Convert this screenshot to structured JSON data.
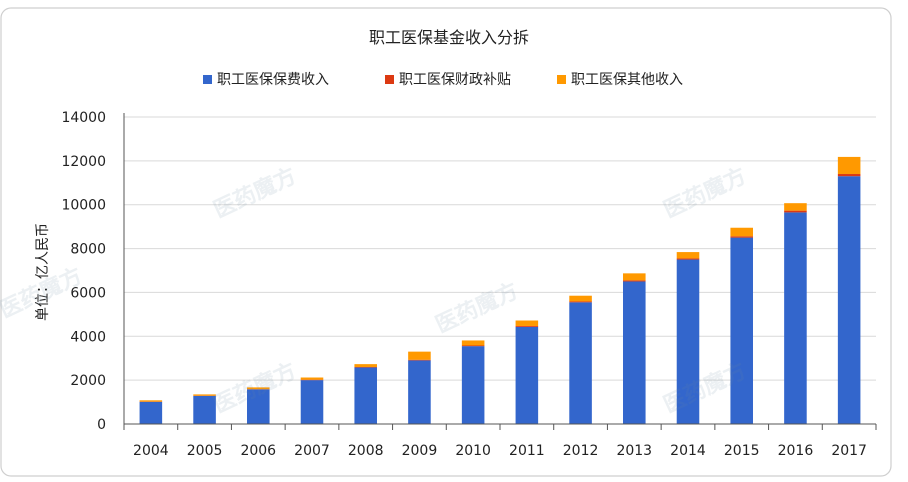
{
  "colors": {
    "series": [
      "#3366cc",
      "#dc3912",
      "#ff9900"
    ],
    "grid": "#d9d9d9",
    "axis": "#555555",
    "text": "#222222",
    "frame": "#cfcfcf"
  },
  "chart_data": {
    "type": "bar",
    "stacked": true,
    "title": "职工医保基金收入分拆",
    "ylabel": "单位：亿人民币",
    "xlabel": "",
    "ylim": [
      0,
      14000
    ],
    "yticks": [
      "0",
      "2000",
      "4000",
      "6000",
      "8000",
      "10000",
      "12000",
      "14000"
    ],
    "grid": true,
    "legend_position": "top",
    "categories": [
      "2004",
      "2005",
      "2006",
      "2007",
      "2008",
      "2009",
      "2010",
      "2011",
      "2012",
      "2013",
      "2014",
      "2015",
      "2016",
      "2017"
    ],
    "series": [
      {
        "name": "职工医保保费收入",
        "values": [
          1010,
          1280,
          1580,
          2000,
          2580,
          2900,
          3550,
          4430,
          5550,
          6500,
          7500,
          8500,
          9650,
          11300
        ]
      },
      {
        "name": "职工医保财政补贴",
        "values": [
          10,
          10,
          10,
          20,
          20,
          30,
          30,
          40,
          40,
          50,
          50,
          60,
          80,
          100
        ]
      },
      {
        "name": "职工医保其他收入",
        "values": [
          60,
          60,
          80,
          100,
          130,
          370,
          230,
          250,
          260,
          320,
          290,
          390,
          340,
          780
        ]
      }
    ]
  },
  "watermark": {
    "text": "医药魔方",
    "subtext": "PHARMCUBE"
  }
}
